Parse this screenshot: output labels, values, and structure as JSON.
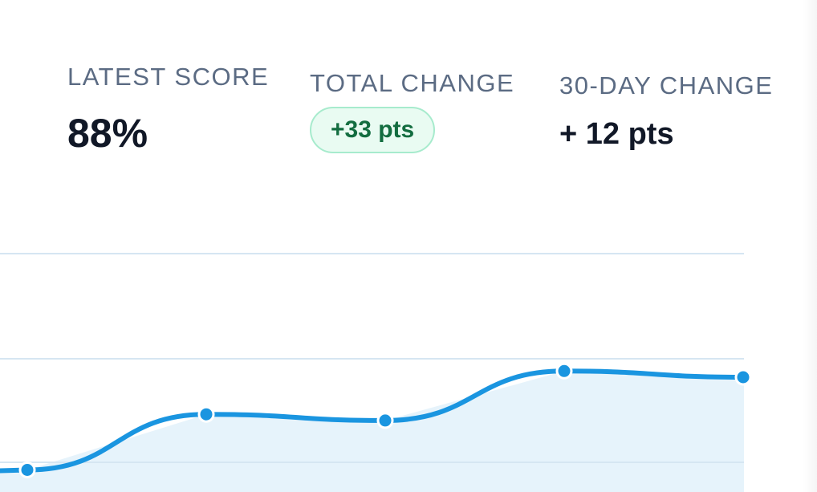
{
  "stats": {
    "latest_score": {
      "label": "LATEST SCORE",
      "value": "88%"
    },
    "total_change": {
      "label": "TOTAL CHANGE",
      "value": "+33 pts"
    },
    "thirty_day_change": {
      "label": "30-DAY CHANGE",
      "value": "+ 12 pts"
    }
  },
  "colors": {
    "line": "#1a95e0",
    "fill": "#e2f1fa",
    "grid": "#d6e6f2",
    "badge_text": "#136d40",
    "badge_bg": "#e9fbf2",
    "badge_border": "#a7ebcd"
  },
  "chart_data": {
    "type": "area",
    "title": "",
    "xlabel": "",
    "ylabel": "",
    "x": [
      1,
      2,
      3,
      4,
      5
    ],
    "values": [
      86.5,
      87.4,
      87.3,
      88.1,
      88.0
    ],
    "ylim": [
      80,
      90
    ],
    "grid": true
  }
}
